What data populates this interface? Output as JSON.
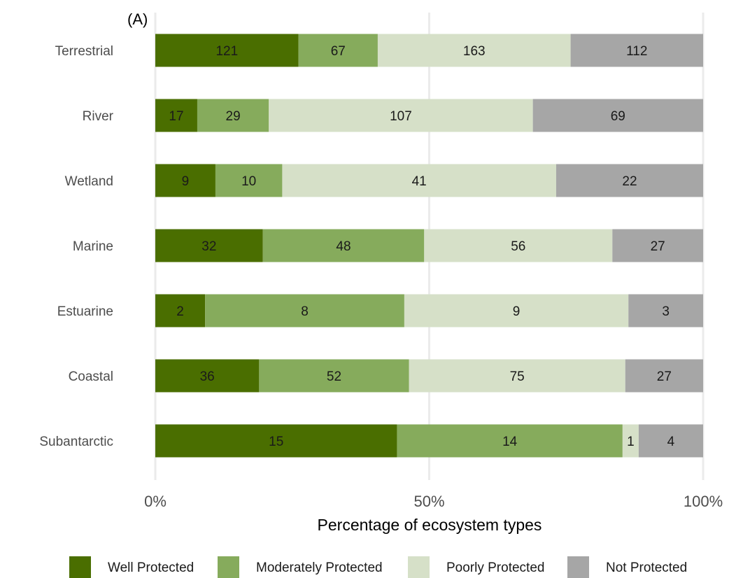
{
  "chart_data": {
    "type": "bar",
    "orientation": "horizontal",
    "stacked": "percent",
    "panel_tag": "(A)",
    "categories": [
      "Terrestrial",
      "River",
      "Wetland",
      "Marine",
      "Estuarine",
      "Coastal",
      "Subantarctic"
    ],
    "series": [
      {
        "name": "Well Protected",
        "color": "#4a6e00",
        "values": [
          121,
          17,
          9,
          32,
          2,
          36,
          15
        ]
      },
      {
        "name": "Moderately Protected",
        "color": "#86ab5c",
        "values": [
          67,
          29,
          10,
          48,
          8,
          52,
          14
        ]
      },
      {
        "name": "Poorly Protected",
        "color": "#d6e0c8",
        "values": [
          163,
          107,
          41,
          56,
          9,
          75,
          1
        ]
      },
      {
        "name": "Not Protected",
        "color": "#a6a6a6",
        "values": [
          112,
          69,
          22,
          27,
          3,
          27,
          4
        ]
      }
    ],
    "xlabel": "Percentage of ecosystem types",
    "ylabel": "",
    "xlim": [
      0,
      100
    ],
    "xticks": [
      0,
      50,
      100
    ],
    "xtick_labels": [
      "0%",
      "50%",
      "100%"
    ],
    "grid": "vertical major",
    "legend_position": "bottom"
  }
}
